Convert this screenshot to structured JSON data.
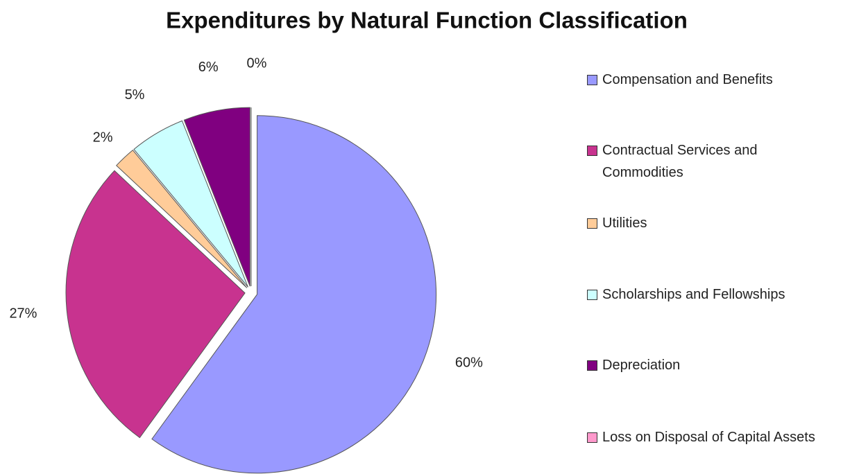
{
  "chart_data": {
    "type": "pie",
    "title": "Expenditures by Natural Function Classification",
    "categories": [
      "Compensation and Benefits",
      "Contractual Services and Commodities",
      "Utilities",
      "Scholarships and Fellowships",
      "Depreciation",
      "Loss on Disposal of Capital Assets"
    ],
    "values": [
      60,
      27,
      2,
      5,
      6,
      0
    ],
    "value_labels": [
      "60%",
      "27%",
      "2%",
      "5%",
      "6%",
      "0%"
    ],
    "colors": [
      "#9999ff",
      "#c8338f",
      "#ffcc99",
      "#ccffff",
      "#800080",
      "#ff99cc"
    ],
    "legend": "right"
  }
}
